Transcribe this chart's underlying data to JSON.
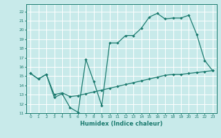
{
  "title": "",
  "xlabel": "Humidex (Indice chaleur)",
  "bg_color": "#c8eaea",
  "line_color": "#1a7a6e",
  "grid_color": "#ffffff",
  "xlim": [
    -0.5,
    23.5
  ],
  "ylim": [
    11,
    22.8
  ],
  "xticks": [
    0,
    1,
    2,
    3,
    4,
    5,
    6,
    7,
    8,
    9,
    10,
    11,
    12,
    13,
    14,
    15,
    16,
    17,
    18,
    19,
    20,
    21,
    22,
    23
  ],
  "yticks": [
    11,
    12,
    13,
    14,
    15,
    16,
    17,
    18,
    19,
    20,
    21,
    22
  ],
  "line1_x": [
    0,
    1,
    2,
    3,
    4,
    5,
    6,
    7,
    8,
    9,
    10,
    11,
    12,
    13,
    14,
    15,
    16,
    17,
    18,
    19,
    20,
    21,
    22,
    23
  ],
  "line1_y": [
    15.3,
    14.7,
    15.2,
    12.7,
    13.1,
    11.6,
    11.1,
    16.8,
    14.4,
    11.8,
    18.6,
    18.6,
    19.4,
    19.4,
    20.2,
    21.4,
    21.8,
    21.2,
    21.3,
    21.3,
    21.6,
    19.5,
    16.7,
    15.6
  ],
  "line2_x": [
    0,
    1,
    2,
    3,
    4,
    5,
    6,
    7,
    8,
    9,
    10,
    11,
    12,
    13,
    14,
    15,
    16,
    17,
    18,
    19,
    20,
    21,
    22,
    23
  ],
  "line2_y": [
    15.3,
    14.7,
    15.2,
    13.0,
    13.2,
    12.8,
    12.9,
    13.1,
    13.3,
    13.5,
    13.7,
    13.9,
    14.1,
    14.3,
    14.5,
    14.7,
    14.9,
    15.1,
    15.2,
    15.2,
    15.3,
    15.4,
    15.5,
    15.6
  ],
  "xlabel_fontsize": 6,
  "tick_fontsize": 4.2,
  "marker_size": 2.2,
  "line_width": 0.9
}
